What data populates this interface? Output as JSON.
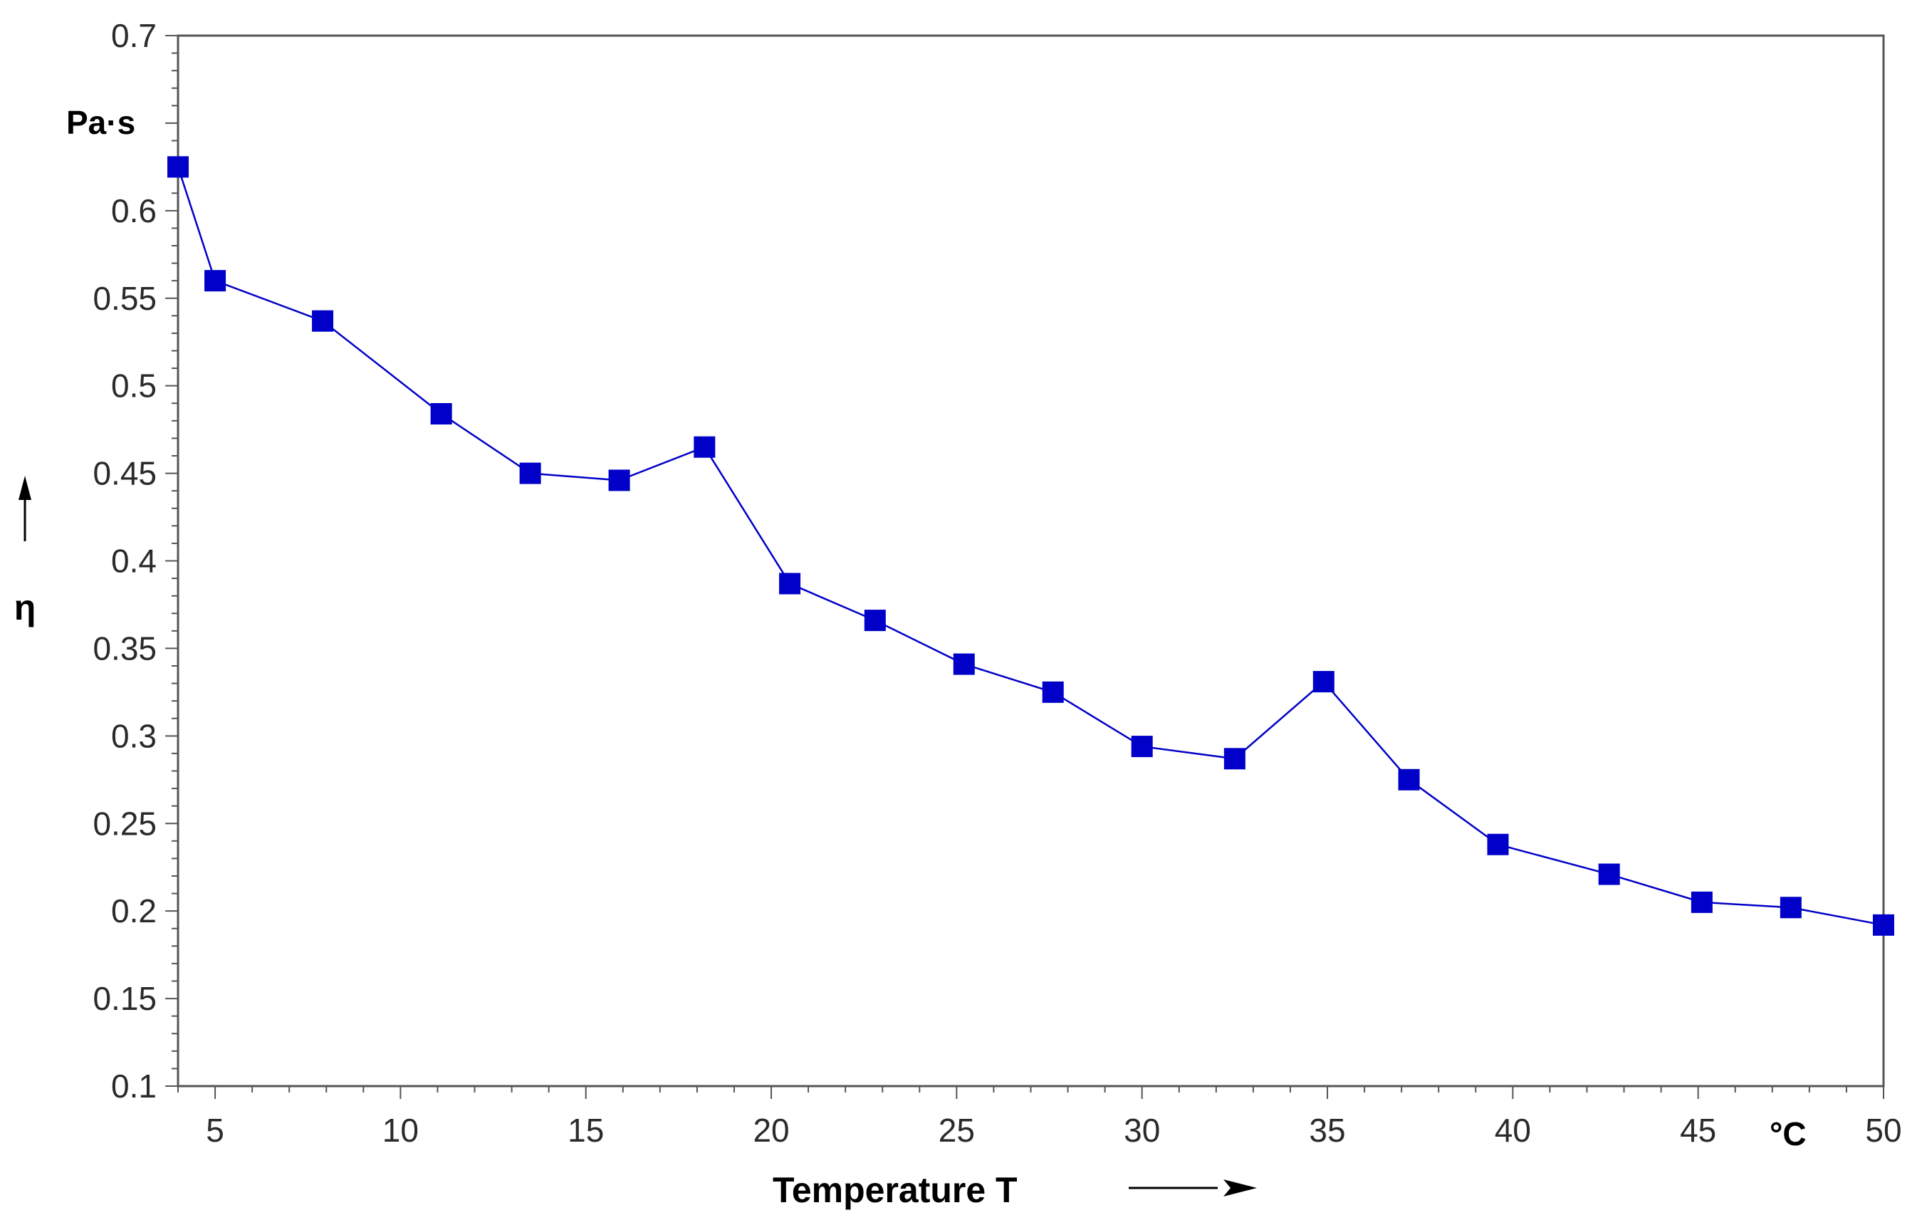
{
  "chart_data": {
    "type": "line",
    "xlabel": "Temperature T",
    "ylabel": "η",
    "x_unit": "°C",
    "y_unit": "Pa·s",
    "xlim": [
      4,
      50
    ],
    "ylim": [
      0.1,
      0.7
    ],
    "x_ticks": [
      5,
      10,
      15,
      20,
      25,
      30,
      35,
      40,
      45,
      50
    ],
    "x_tick_labels": [
      "5",
      "10",
      "15",
      "20",
      "25",
      "30",
      "35",
      "40",
      "45",
      "50"
    ],
    "y_ticks": [
      0.1,
      0.15,
      0.2,
      0.25,
      0.3,
      0.35,
      0.4,
      0.45,
      0.5,
      0.55,
      0.6,
      0.65,
      0.7
    ],
    "y_tick_labels": [
      "0.1",
      "0.15",
      "0.2",
      "0.25",
      "0.3",
      "0.35",
      "0.4",
      "0.45",
      "0.5",
      "0.55",
      "0.6",
      "",
      "0.7"
    ],
    "grid": false,
    "series": [
      {
        "color": "#0000c8",
        "marker": "square",
        "x": [
          4.0,
          5.0,
          7.9,
          11.1,
          13.5,
          15.9,
          18.2,
          20.5,
          22.8,
          25.2,
          27.6,
          30.0,
          32.5,
          34.9,
          37.2,
          39.6,
          42.6,
          45.1,
          47.5,
          50.0
        ],
        "y": [
          0.625,
          0.56,
          0.537,
          0.484,
          0.45,
          0.446,
          0.465,
          0.387,
          0.366,
          0.341,
          0.325,
          0.294,
          0.287,
          0.331,
          0.275,
          0.238,
          0.221,
          0.205,
          0.202,
          0.192
        ]
      }
    ]
  }
}
